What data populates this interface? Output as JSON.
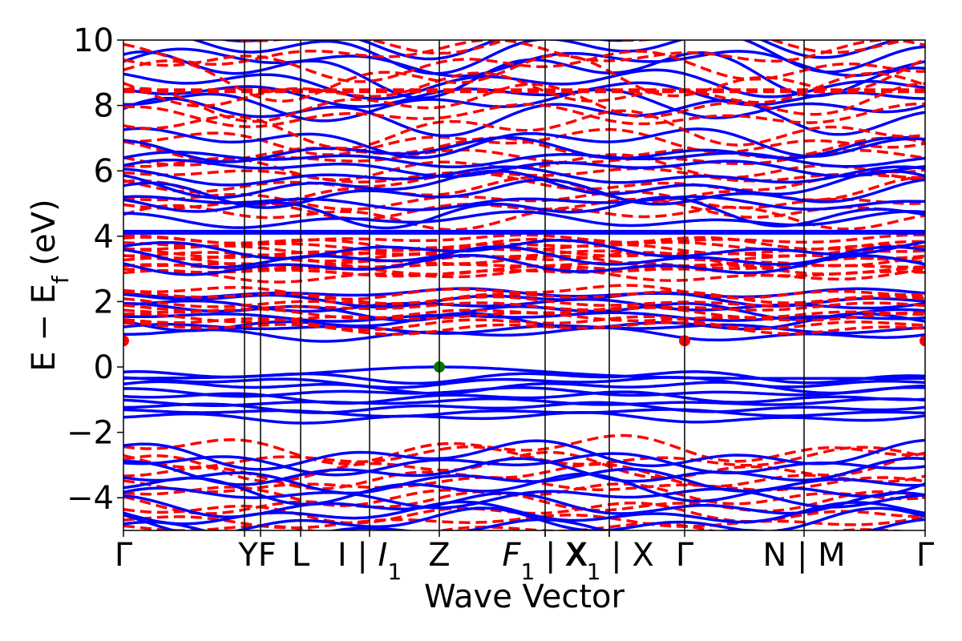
{
  "chart_data": {
    "type": "line",
    "title": "",
    "xlabel": "Wave Vector",
    "ylabel": "E − E",
    "ylabel_sub": "f",
    "ylabel_unit": " (eV)",
    "ylim": [
      -5,
      10
    ],
    "yticks": [
      {
        "value": -4,
        "label": "−4"
      },
      {
        "value": -2,
        "label": "−2"
      },
      {
        "value": 0,
        "label": "0"
      },
      {
        "value": 2,
        "label": "2"
      },
      {
        "value": 4,
        "label": "4"
      },
      {
        "value": 6,
        "label": "6"
      },
      {
        "value": 8,
        "label": "8"
      },
      {
        "value": 10,
        "label": "10"
      }
    ],
    "xlim": [
      0,
      1
    ],
    "kpoints": [
      {
        "pos": 0.0,
        "label": "Γ",
        "sub": ""
      },
      {
        "pos": 0.151,
        "label": "Y",
        "sub": ""
      },
      {
        "pos": 0.171,
        "label": "F",
        "sub": ""
      },
      {
        "pos": 0.221,
        "label": "L",
        "sub": ""
      },
      {
        "pos": 0.307,
        "label": "I | I",
        "sub": "1"
      },
      {
        "pos": 0.394,
        "label": "Z",
        "sub": ""
      },
      {
        "pos": 0.526,
        "label": "F",
        "sub": "1"
      },
      {
        "pos": 0.526,
        "label": " | X",
        "sub": ""
      },
      {
        "pos": 0.606,
        "label": "X",
        "sub": "1"
      },
      {
        "pos": 0.606,
        "label": " | X",
        "sub": ""
      },
      {
        "pos": 0.7,
        "label": "Γ",
        "sub": ""
      },
      {
        "pos": 0.849,
        "label": "N | M",
        "sub": ""
      },
      {
        "pos": 1.0,
        "label": "Γ",
        "sub": ""
      }
    ],
    "vlines": [
      0.151,
      0.171,
      0.221,
      0.307,
      0.394,
      0.526,
      0.606,
      0.7,
      0.849
    ],
    "series": [
      {
        "style": "solid",
        "color": "#0000ff",
        "width": 3.5,
        "values": [
          {
            "x": 0.0,
            "y": -0.1
          },
          {
            "x": 0.394,
            "y": 0.0
          },
          {
            "x": 1.0,
            "y": -0.15
          }
        ]
      }
    ],
    "markers": [
      {
        "x": 0.394,
        "y": 0.0,
        "color": "#007700"
      },
      {
        "x": 0.0,
        "y": 0.8,
        "color": "#ff0000"
      },
      {
        "x": 0.7,
        "y": 0.8,
        "color": "#ff0000"
      },
      {
        "x": 1.0,
        "y": 0.8,
        "color": "#ff0000"
      }
    ],
    "band_groups": [
      {
        "style": "solid",
        "color": "#0000ff",
        "count": 9,
        "lo": -1.55,
        "hi": -0.3,
        "amp": 0.25
      },
      {
        "style": "solid",
        "color": "#0000ff",
        "count": 8,
        "lo": 1.0,
        "hi": 2.25,
        "amp": 0.3
      },
      {
        "style": "dashed",
        "color": "#ff0000",
        "count": 8,
        "lo": 1.2,
        "hi": 2.3,
        "amp": 0.3
      },
      {
        "style": "dashed",
        "color": "#ff0000",
        "count": 12,
        "lo": 2.8,
        "hi": 3.9,
        "amp": 0.25
      },
      {
        "style": "solid",
        "color": "#0000ff",
        "count": 3,
        "lo": 3.1,
        "hi": 3.6,
        "amp": 0.35
      },
      {
        "style": "dashed",
        "color": "#ff0000",
        "count": 10,
        "lo": 4.6,
        "hi": 6.9,
        "amp": 0.55
      },
      {
        "style": "solid",
        "color": "#0000ff",
        "count": 10,
        "lo": 4.5,
        "hi": 6.9,
        "amp": 0.55
      },
      {
        "style": "solid",
        "color": "#0000ff",
        "count": 8,
        "lo": 7.7,
        "hi": 10.0,
        "amp": 0.9
      },
      {
        "style": "dashed",
        "color": "#ff0000",
        "count": 8,
        "lo": 7.3,
        "hi": 10.0,
        "amp": 0.9
      },
      {
        "style": "dashed",
        "color": "#ff0000",
        "count": 10,
        "lo": -5.0,
        "hi": -2.5,
        "amp": 0.5
      },
      {
        "style": "solid",
        "color": "#0000ff",
        "count": 10,
        "lo": -5.0,
        "hi": -2.7,
        "amp": 0.5
      }
    ],
    "flat_bands": [
      {
        "style": "solid",
        "color": "#0000ff",
        "width": 6,
        "y": 4.12
      },
      {
        "style": "dashed",
        "color": "#ff0000",
        "width": 6,
        "y": 8.45
      }
    ]
  }
}
